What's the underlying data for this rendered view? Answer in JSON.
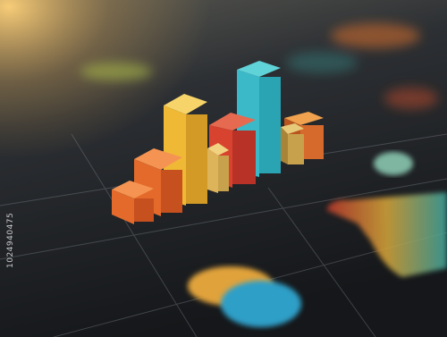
{
  "image": {
    "watermark": "1024940475"
  }
}
